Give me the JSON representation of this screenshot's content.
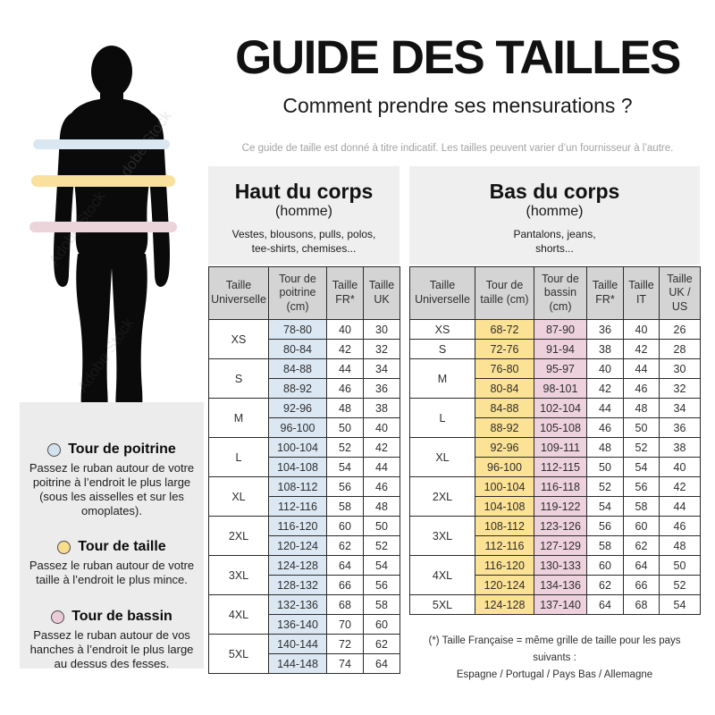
{
  "watermark": "Adobe Stock",
  "header": {
    "title": "GUIDE DES TAILLES",
    "subtitle": "Comment prendre ses mensurations ?",
    "disclaimer": "Ce guide de taille est donné à titre indicatif. Les tailles peuvent varier d’un fournisseur à l’autre."
  },
  "legend": {
    "items": [
      {
        "title": "Tour de poitrine",
        "color": "#d2e2ef",
        "desc": "Passez le ruban autour de votre poitrine à l’endroit le plus large (sous les aisselles et sur les omoplates)."
      },
      {
        "title": "Tour de taille",
        "color": "#f8dd8d",
        "desc": "Passez le ruban autour de votre taille à l’endroit le plus mince."
      },
      {
        "title": "Tour de bassin",
        "color": "#eccbd8",
        "desc": "Passez le ruban autour de vos hanches à l’endroit le plus large au dessus des fesses."
      }
    ]
  },
  "sections": {
    "upper": {
      "title": "Haut du corps",
      "subtitle": "(homme)",
      "desc_line1": "Vestes, blousons, pulls, polos,",
      "desc_line2": "tee-shirts, chemises..."
    },
    "lower": {
      "title": "Bas du corps",
      "subtitle": "(homme)",
      "desc_line1": "Pantalons, jeans,",
      "desc_line2": "shorts..."
    }
  },
  "upper_table": {
    "headers": [
      "Taille Universelle",
      "Tour de poitrine (cm)",
      "Taille FR*",
      "Taille UK"
    ],
    "groups": [
      {
        "size": "XS",
        "rows": [
          [
            "78-80",
            "40",
            "30"
          ],
          [
            "80-84",
            "42",
            "32"
          ]
        ]
      },
      {
        "size": "S",
        "rows": [
          [
            "84-88",
            "44",
            "34"
          ],
          [
            "88-92",
            "46",
            "36"
          ]
        ]
      },
      {
        "size": "M",
        "rows": [
          [
            "92-96",
            "48",
            "38"
          ],
          [
            "96-100",
            "50",
            "40"
          ]
        ]
      },
      {
        "size": "L",
        "rows": [
          [
            "100-104",
            "52",
            "42"
          ],
          [
            "104-108",
            "54",
            "44"
          ]
        ]
      },
      {
        "size": "XL",
        "rows": [
          [
            "108-112",
            "56",
            "46"
          ],
          [
            "112-116",
            "58",
            "48"
          ]
        ]
      },
      {
        "size": "2XL",
        "rows": [
          [
            "116-120",
            "60",
            "50"
          ],
          [
            "120-124",
            "62",
            "52"
          ]
        ]
      },
      {
        "size": "3XL",
        "rows": [
          [
            "124-128",
            "64",
            "54"
          ],
          [
            "128-132",
            "66",
            "56"
          ]
        ]
      },
      {
        "size": "4XL",
        "rows": [
          [
            "132-136",
            "68",
            "58"
          ],
          [
            "136-140",
            "70",
            "60"
          ]
        ]
      },
      {
        "size": "5XL",
        "rows": [
          [
            "140-144",
            "72",
            "62"
          ],
          [
            "144-148",
            "74",
            "64"
          ]
        ]
      }
    ]
  },
  "lower_table": {
    "headers": [
      "Taille Universelle",
      "Tour de taille (cm)",
      "Tour de bassin (cm)",
      "Taille FR*",
      "Taille IT",
      "Taille UK / US"
    ],
    "groups": [
      {
        "size": "XS",
        "rows": [
          [
            "68-72",
            "87-90",
            "36",
            "40",
            "26"
          ]
        ]
      },
      {
        "size": "S",
        "rows": [
          [
            "72-76",
            "91-94",
            "38",
            "42",
            "28"
          ]
        ]
      },
      {
        "size": "M",
        "rows": [
          [
            "76-80",
            "95-97",
            "40",
            "44",
            "30"
          ],
          [
            "80-84",
            "98-101",
            "42",
            "46",
            "32"
          ]
        ]
      },
      {
        "size": "L",
        "rows": [
          [
            "84-88",
            "102-104",
            "44",
            "48",
            "34"
          ],
          [
            "88-92",
            "105-108",
            "46",
            "50",
            "36"
          ]
        ]
      },
      {
        "size": "XL",
        "rows": [
          [
            "92-96",
            "109-111",
            "48",
            "52",
            "38"
          ],
          [
            "96-100",
            "112-115",
            "50",
            "54",
            "40"
          ]
        ]
      },
      {
        "size": "2XL",
        "rows": [
          [
            "100-104",
            "116-118",
            "52",
            "56",
            "42"
          ],
          [
            "104-108",
            "119-122",
            "54",
            "58",
            "44"
          ]
        ]
      },
      {
        "size": "3XL",
        "rows": [
          [
            "108-112",
            "123-126",
            "56",
            "60",
            "46"
          ],
          [
            "112-116",
            "127-129",
            "58",
            "62",
            "48"
          ]
        ]
      },
      {
        "size": "4XL",
        "rows": [
          [
            "116-120",
            "130-133",
            "60",
            "64",
            "50"
          ],
          [
            "120-124",
            "134-136",
            "62",
            "66",
            "52"
          ]
        ]
      },
      {
        "size": "5XL",
        "rows": [
          [
            "124-128",
            "137-140",
            "64",
            "68",
            "54"
          ]
        ]
      }
    ]
  },
  "footnote": {
    "line1": "(*) Taille Française = même grille de taille pour les pays suivants :",
    "line2": "Espagne / Portugal / Pays Bas / Allemagne"
  },
  "colors": {
    "band_chest": "#d9e7f2",
    "band_waist": "#f9e09c",
    "band_hips": "#ecd4db",
    "cell_chest": "#dbe8f4",
    "cell_waist": "#fce294",
    "cell_hips": "#edd2dd",
    "table_header_bg": "#d4d4d4",
    "panel_bg": "#efefef"
  }
}
